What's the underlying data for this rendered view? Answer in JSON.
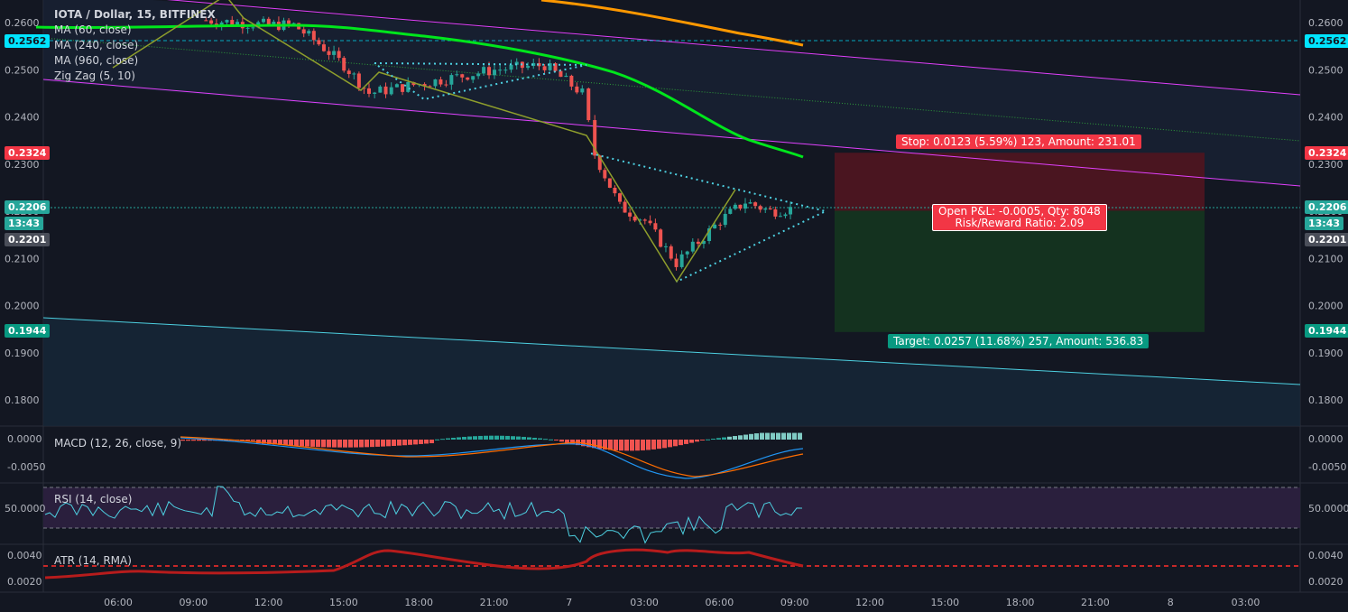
{
  "symbol": "IOTA / Dollar, 15, BITFINEX",
  "legend": [
    "MA (60, close)",
    "MA (240, close)",
    "MA (960, close)",
    "Zig Zag (5, 10)"
  ],
  "indicators": {
    "macd": "MACD (12, 26, close, 9)",
    "rsi": "RSI (14, close)",
    "atr": "ATR (14, RMA)"
  },
  "price_axis": [
    "0.2600",
    "0.2500",
    "0.2400",
    "0.2300",
    "0.2200",
    "0.2100",
    "0.2000",
    "0.1900",
    "0.1800"
  ],
  "macd_axis": [
    "0.0000",
    "-0.0050"
  ],
  "rsi_axis": [
    "50.0000"
  ],
  "atr_axis": [
    "0.0040",
    "0.0020"
  ],
  "time_axis": [
    "06:00",
    "09:00",
    "12:00",
    "15:00",
    "18:00",
    "21:00",
    "7",
    "03:00",
    "06:00",
    "09:00",
    "12:00",
    "15:00",
    "18:00",
    "21:00",
    "8",
    "03:00"
  ],
  "price_tags": {
    "ma_level": "0.2562",
    "stop_level": "0.2324",
    "last_price": "0.2206",
    "countdown": "13:43",
    "prev_price": "0.2201",
    "target_level": "0.1944"
  },
  "position": {
    "stop": "Stop: 0.0123 (5.59%) 123, Amount: 231.01",
    "pnl": "Open P&L: -0.0005, Qty: 8048",
    "rr": "Risk/Reward Ratio: 2.09",
    "target": "Target: 0.0257 (11.68%) 257, Amount: 536.83"
  },
  "colors": {
    "background": "#131722",
    "bull": "#26a69a",
    "bear": "#ef5350",
    "ma60": "#00e61c",
    "ma960": "#ff9800",
    "channel": "#e040fb",
    "zigzag": "#8e9e2c",
    "triangle": "#4dd0e1",
    "stop_zone": "#4a1520",
    "target_zone": "#14321f",
    "rsi_band": "#2a1f3d"
  },
  "chart_data": {
    "type": "candlestick",
    "title": "IOTA / Dollar, 15, BITFINEX",
    "y_range": [
      0.176,
      0.262
    ],
    "entry": 0.2201,
    "stop": 0.2324,
    "target": 0.1944,
    "last": 0.2206,
    "ohlc_close_path": [
      {
        "t": "09:30",
        "c": 0.2605
      },
      {
        "t": "12:00",
        "c": 0.2595
      },
      {
        "t": "13:00",
        "c": 0.2595
      },
      {
        "t": "14:00",
        "c": 0.2555
      },
      {
        "t": "15:00",
        "c": 0.251
      },
      {
        "t": "16:00",
        "c": 0.245
      },
      {
        "t": "18:00",
        "c": 0.247
      },
      {
        "t": "21:00",
        "c": 0.25
      },
      {
        "t": "23:00",
        "c": 0.251
      },
      {
        "t": "00:30",
        "c": 0.245
      },
      {
        "t": "01:00",
        "c": 0.232
      },
      {
        "t": "02:00",
        "c": 0.221
      },
      {
        "t": "03:00",
        "c": 0.218
      },
      {
        "t": "04:15",
        "c": 0.209
      },
      {
        "t": "06:00",
        "c": 0.218
      },
      {
        "t": "07:00",
        "c": 0.222
      },
      {
        "t": "08:00",
        "c": 0.22
      },
      {
        "t": "09:00",
        "c": 0.2206
      }
    ],
    "ma60": [
      0.26,
      0.26,
      0.2595,
      0.2575,
      0.2545,
      0.25,
      0.2445,
      0.2375,
      0.2345,
      0.2318
    ],
    "ma960": [
      0.2625,
      0.2612,
      0.2595,
      0.2577,
      0.2565
    ],
    "macd_line_range": [
      -0.0072,
      -0.0018
    ],
    "rsi_range": [
      35,
      62
    ],
    "atr_range": [
      0.002,
      0.0042
    ]
  }
}
